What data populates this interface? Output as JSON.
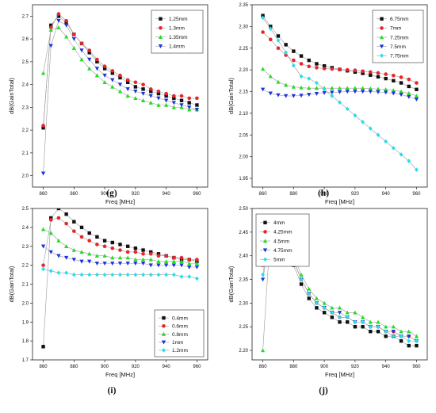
{
  "chart_data": [
    {
      "type": "line",
      "panel_label": "(g)",
      "xlabel": "Freq [MHz]",
      "ylabel": "dB(GainTotal)",
      "xlim": [
        853,
        967
      ],
      "ylim": [
        1.95,
        2.75
      ],
      "xticks": [
        860,
        880,
        900,
        920,
        940,
        960
      ],
      "yticks": [
        2.0,
        2.1,
        2.2,
        2.3,
        2.4,
        2.5,
        2.6,
        2.7
      ],
      "ytick_labels": [
        "2.0",
        "2.1",
        "2.2",
        "2.3",
        "2.4",
        "2.5",
        "2.6",
        "2.7"
      ],
      "legend_position": "top-right",
      "x": [
        860,
        865,
        870,
        875,
        880,
        885,
        890,
        895,
        900,
        905,
        910,
        915,
        920,
        925,
        930,
        935,
        940,
        945,
        950,
        955,
        960
      ],
      "series": [
        {
          "name": "1.25mm",
          "marker": "square",
          "color": "#111111",
          "values": [
            2.21,
            2.66,
            2.7,
            2.67,
            2.62,
            2.58,
            2.54,
            2.5,
            2.47,
            2.45,
            2.43,
            2.41,
            2.39,
            2.38,
            2.37,
            2.36,
            2.35,
            2.34,
            2.33,
            2.32,
            2.31
          ]
        },
        {
          "name": "1.3mm",
          "marker": "circle",
          "color": "#e8262b",
          "values": [
            2.22,
            2.65,
            2.71,
            2.68,
            2.62,
            2.58,
            2.55,
            2.51,
            2.48,
            2.46,
            2.44,
            2.42,
            2.41,
            2.4,
            2.38,
            2.37,
            2.36,
            2.35,
            2.35,
            2.34,
            2.34
          ]
        },
        {
          "name": "1.35mm",
          "marker": "triangle-up",
          "color": "#22dd22",
          "values": [
            2.45,
            2.64,
            2.65,
            2.61,
            2.56,
            2.51,
            2.47,
            2.44,
            2.41,
            2.39,
            2.37,
            2.35,
            2.34,
            2.33,
            2.32,
            2.31,
            2.31,
            2.3,
            2.3,
            2.29,
            2.29
          ]
        },
        {
          "name": "1.4mm",
          "marker": "triangle-down",
          "color": "#1f33e0",
          "values": [
            2.01,
            2.57,
            2.68,
            2.66,
            2.6,
            2.55,
            2.51,
            2.47,
            2.44,
            2.42,
            2.4,
            2.38,
            2.37,
            2.36,
            2.35,
            2.34,
            2.33,
            2.32,
            2.31,
            2.3,
            2.29
          ]
        }
      ]
    },
    {
      "type": "line",
      "panel_label": "(h)",
      "xlabel": "Freq [MHz]",
      "ylabel": "dB(GainTotal)",
      "xlim": [
        853,
        967
      ],
      "ylim": [
        1.93,
        2.35
      ],
      "xticks": [
        860,
        880,
        900,
        920,
        940,
        960
      ],
      "yticks": [
        1.95,
        2.0,
        2.05,
        2.1,
        2.15,
        2.2,
        2.25,
        2.3,
        2.35
      ],
      "ytick_labels": [
        "1.95",
        "2.00",
        "2.05",
        "2.10",
        "2.15",
        "2.20",
        "2.25",
        "2.30",
        "2.35"
      ],
      "legend_position": "top-right",
      "x": [
        860,
        865,
        870,
        875,
        880,
        885,
        890,
        895,
        900,
        905,
        910,
        915,
        920,
        925,
        930,
        935,
        940,
        945,
        950,
        955,
        960
      ],
      "series": [
        {
          "name": "6.75mm",
          "marker": "square",
          "color": "#111111",
          "values": [
            2.325,
            2.3,
            2.278,
            2.258,
            2.243,
            2.232,
            2.222,
            2.214,
            2.209,
            2.205,
            2.201,
            2.198,
            2.195,
            2.192,
            2.188,
            2.184,
            2.18,
            2.175,
            2.17,
            2.162,
            2.155
          ]
        },
        {
          "name": "7mm",
          "marker": "circle",
          "color": "#e8262b",
          "values": [
            2.287,
            2.27,
            2.25,
            2.234,
            2.222,
            2.214,
            2.208,
            2.205,
            2.203,
            2.202,
            2.201,
            2.2,
            2.199,
            2.197,
            2.195,
            2.193,
            2.19,
            2.187,
            2.183,
            2.178,
            2.17
          ]
        },
        {
          "name": "7.25mm",
          "marker": "triangle-up",
          "color": "#22dd22",
          "values": [
            2.202,
            2.185,
            2.172,
            2.165,
            2.161,
            2.159,
            2.158,
            2.158,
            2.158,
            2.158,
            2.158,
            2.158,
            2.158,
            2.158,
            2.157,
            2.156,
            2.155,
            2.153,
            2.15,
            2.146,
            2.14
          ]
        },
        {
          "name": "7.5mm",
          "marker": "triangle-down",
          "color": "#1f33e0",
          "values": [
            2.155,
            2.146,
            2.142,
            2.14,
            2.14,
            2.141,
            2.143,
            2.145,
            2.147,
            2.148,
            2.149,
            2.15,
            2.15,
            2.15,
            2.15,
            2.149,
            2.148,
            2.146,
            2.143,
            2.138,
            2.132
          ]
        },
        {
          "name": "7.75mm",
          "marker": "diamond",
          "color": "#22e0f0",
          "values": [
            2.32,
            2.295,
            2.268,
            2.24,
            2.21,
            2.185,
            2.18,
            2.17,
            2.155,
            2.14,
            2.125,
            2.11,
            2.095,
            2.08,
            2.065,
            2.05,
            2.035,
            2.02,
            2.005,
            1.99,
            1.97
          ]
        }
      ]
    },
    {
      "type": "line",
      "panel_label": "(i)",
      "xlabel": "Freq [MHz]",
      "ylabel": "dB(GainTotal)",
      "xlim": [
        853,
        967
      ],
      "ylim": [
        1.7,
        2.5
      ],
      "xticks": [
        860,
        880,
        900,
        920,
        940,
        960
      ],
      "yticks": [
        1.7,
        1.8,
        1.9,
        2.0,
        2.1,
        2.2,
        2.3,
        2.4,
        2.5
      ],
      "ytick_labels": [
        "1.7",
        "1.8",
        "1.9",
        "2.0",
        "2.1",
        "2.2",
        "2.3",
        "2.4",
        "2.5"
      ],
      "legend_position": "bottom-right",
      "x": [
        860,
        865,
        870,
        875,
        880,
        885,
        890,
        895,
        900,
        905,
        910,
        915,
        920,
        925,
        930,
        935,
        940,
        945,
        950,
        955,
        960
      ],
      "series": [
        {
          "name": "0.4mm",
          "marker": "square",
          "color": "#111111",
          "values": [
            1.77,
            2.45,
            2.5,
            2.47,
            2.43,
            2.4,
            2.37,
            2.35,
            2.33,
            2.32,
            2.31,
            2.3,
            2.29,
            2.28,
            2.27,
            2.26,
            2.25,
            2.24,
            2.23,
            2.23,
            2.22
          ]
        },
        {
          "name": "0.6mm",
          "marker": "circle",
          "color": "#e8262b",
          "values": [
            2.2,
            2.44,
            2.45,
            2.42,
            2.38,
            2.35,
            2.33,
            2.31,
            2.3,
            2.29,
            2.28,
            2.27,
            2.27,
            2.26,
            2.26,
            2.25,
            2.25,
            2.24,
            2.24,
            2.23,
            2.23
          ]
        },
        {
          "name": "0.8mm",
          "marker": "triangle-up",
          "color": "#22dd22",
          "values": [
            2.39,
            2.37,
            2.33,
            2.3,
            2.28,
            2.27,
            2.26,
            2.25,
            2.25,
            2.24,
            2.24,
            2.24,
            2.23,
            2.23,
            2.23,
            2.22,
            2.22,
            2.22,
            2.22,
            2.21,
            2.21
          ]
        },
        {
          "name": "1mm",
          "marker": "triangle-down",
          "color": "#1f33e0",
          "values": [
            2.3,
            2.27,
            2.25,
            2.24,
            2.23,
            2.22,
            2.22,
            2.21,
            2.21,
            2.21,
            2.21,
            2.21,
            2.21,
            2.21,
            2.2,
            2.2,
            2.2,
            2.2,
            2.2,
            2.19,
            2.19
          ]
        },
        {
          "name": "1.2mm",
          "marker": "diamond",
          "color": "#22e0f0",
          "values": [
            2.18,
            2.17,
            2.16,
            2.16,
            2.15,
            2.15,
            2.15,
            2.15,
            2.15,
            2.15,
            2.15,
            2.15,
            2.15,
            2.15,
            2.15,
            2.15,
            2.15,
            2.15,
            2.14,
            2.14,
            2.13
          ]
        }
      ]
    },
    {
      "type": "line",
      "panel_label": "(j)",
      "xlabel": "Freq [MHz]",
      "ylabel": "dB(GainTotal)",
      "xlim": [
        853,
        967
      ],
      "ylim": [
        2.18,
        2.5
      ],
      "xticks": [
        860,
        880,
        900,
        920,
        940,
        960
      ],
      "yticks": [
        2.2,
        2.25,
        2.3,
        2.35,
        2.4,
        2.45,
        2.5
      ],
      "ytick_labels": [
        "2.20",
        "2.25",
        "2.30",
        "2.35",
        "2.40",
        "2.45",
        "2.50"
      ],
      "legend_position": "top-right",
      "x": [
        860,
        865,
        870,
        875,
        880,
        885,
        890,
        895,
        900,
        905,
        910,
        915,
        920,
        925,
        930,
        935,
        940,
        945,
        950,
        955,
        960
      ],
      "series": [
        {
          "name": "4mm",
          "marker": "square",
          "color": "#111111",
          "values": [
            2.4,
            2.45,
            2.44,
            2.42,
            2.38,
            2.34,
            2.31,
            2.29,
            2.28,
            2.27,
            2.26,
            2.26,
            2.25,
            2.25,
            2.24,
            2.24,
            2.23,
            2.23,
            2.22,
            2.21,
            2.21
          ]
        },
        {
          "name": "4.25mm",
          "marker": "circle",
          "color": "#e8262b",
          "values": [
            2.38,
            2.475,
            2.45,
            2.43,
            2.39,
            2.35,
            2.32,
            2.3,
            2.29,
            2.28,
            2.27,
            2.27,
            2.26,
            2.26,
            2.25,
            2.25,
            2.24,
            2.24,
            2.23,
            2.23,
            2.22
          ]
        },
        {
          "name": "4.5mm",
          "marker": "triangle-up",
          "color": "#22dd22",
          "values": [
            2.2,
            2.455,
            2.46,
            2.44,
            2.4,
            2.36,
            2.33,
            2.31,
            2.3,
            2.29,
            2.29,
            2.28,
            2.28,
            2.27,
            2.26,
            2.26,
            2.25,
            2.25,
            2.24,
            2.24,
            2.23
          ]
        },
        {
          "name": "4.75mm",
          "marker": "triangle-down",
          "color": "#1f33e0",
          "values": [
            2.35,
            2.45,
            2.45,
            2.43,
            2.39,
            2.35,
            2.32,
            2.3,
            2.29,
            2.28,
            2.28,
            2.27,
            2.26,
            2.26,
            2.25,
            2.25,
            2.24,
            2.24,
            2.23,
            2.23,
            2.22
          ]
        },
        {
          "name": "5mm",
          "marker": "diamond",
          "color": "#22e0f0",
          "values": [
            2.36,
            2.46,
            2.45,
            2.43,
            2.39,
            2.35,
            2.32,
            2.3,
            2.29,
            2.28,
            2.27,
            2.27,
            2.26,
            2.26,
            2.25,
            2.25,
            2.24,
            2.23,
            2.23,
            2.22,
            2.22
          ]
        }
      ]
    }
  ]
}
